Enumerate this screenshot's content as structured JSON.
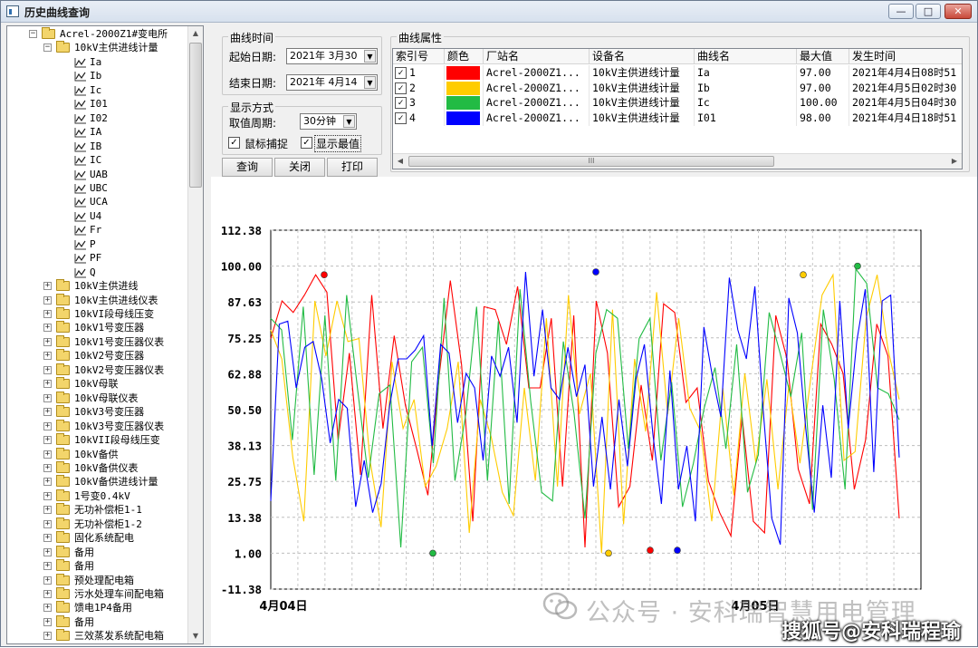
{
  "window": {
    "title": "历史曲线查询",
    "buttons": {
      "minimize": "—",
      "maximize": "□",
      "close": "✕"
    }
  },
  "tree": {
    "root": "Acrel-2000Z1#变电所",
    "node": "10kV主供进线计量",
    "children": [
      "Ia",
      "Ib",
      "Ic",
      "I01",
      "I02",
      "IA",
      "IB",
      "IC",
      "UAB",
      "UBC",
      "UCA",
      "U4",
      "Fr",
      "P",
      "PF",
      "Q"
    ],
    "siblings": [
      "10kV主供进线",
      "10kV主供进线仪表",
      "10kVI段母线压变",
      "10kV1号变压器",
      "10kV1号变压器仪表",
      "10kV2号变压器",
      "10kV2号变压器仪表",
      "10kV母联",
      "10kV母联仪表",
      "10kV3号变压器",
      "10kV3号变压器仪表",
      "10kVII段母线压变",
      "10kV备供",
      "10kV备供仪表",
      "10kV备供进线计量",
      "1号变0.4kV",
      "无功补偿柜1-1",
      "无功补偿柜1-2",
      "固化系统配电",
      "备用",
      "备用",
      "预处理配电箱",
      "污水处理车间配电箱",
      "馈电1P4备用",
      "备用",
      "三效蒸发系统配电箱"
    ]
  },
  "curve_time": {
    "group_title": "曲线时间",
    "start_label": "起始日期:",
    "start_value": "2021年 3月30",
    "end_label": "结束日期:",
    "end_value": "2021年 4月14"
  },
  "display_mode": {
    "group_title": "显示方式",
    "period_label": "取值周期:",
    "period_value": "30分钟",
    "mouse_capture_label": "鼠标捕捉",
    "mouse_capture_checked": true,
    "show_extreme_label": "显示最值",
    "show_extreme_checked": true
  },
  "actions": {
    "query": "查询",
    "close": "关闭",
    "print": "打印"
  },
  "curve_props": {
    "group_title": "曲线属性",
    "columns": [
      "索引号",
      "颜色",
      "厂站名",
      "设备名",
      "曲线名",
      "最大值",
      "发生时间"
    ],
    "rows": [
      {
        "index": "1",
        "color": "#ff0000",
        "station": "Acrel-2000Z1...",
        "device": "10kV主供进线计量",
        "curve": "Ia",
        "max": "97.00",
        "time": "2021年4月4日08时51"
      },
      {
        "index": "2",
        "color": "#ffcc00",
        "station": "Acrel-2000Z1...",
        "device": "10kV主供进线计量",
        "curve": "Ib",
        "max": "97.00",
        "time": "2021年4月5日02时30"
      },
      {
        "index": "3",
        "color": "#22bb44",
        "station": "Acrel-2000Z1...",
        "device": "10kV主供进线计量",
        "curve": "Ic",
        "max": "100.00",
        "time": "2021年4月5日04时30"
      },
      {
        "index": "4",
        "color": "#0000ff",
        "station": "Acrel-2000Z1...",
        "device": "10kV主供进线计量",
        "curve": "I01",
        "max": "98.00",
        "time": "2021年4月4日18时51"
      }
    ],
    "scroll_thumb_glyph": "III"
  },
  "chart_data": {
    "type": "line",
    "ylim": [
      -11.38,
      112.38
    ],
    "yticks": [
      "112.38",
      "100.00",
      "87.63",
      "75.25",
      "62.88",
      "50.50",
      "38.13",
      "25.75",
      "13.38",
      "1.00",
      "-11.38"
    ],
    "xticks": [
      "4月04日",
      "4月05日"
    ],
    "series": [
      {
        "name": "Ia",
        "color": "#ff0000",
        "values": [
          75,
          88,
          84,
          90,
          97,
          91,
          40,
          70,
          28,
          90,
          44,
          76,
          52,
          37,
          21,
          62,
          95,
          66,
          12,
          86,
          85,
          73,
          93,
          58,
          58,
          82,
          24,
          83,
          3,
          88,
          70,
          17,
          24,
          59,
          33,
          87,
          84,
          53,
          58,
          26,
          15,
          7,
          48,
          12,
          8,
          83,
          68,
          30,
          18,
          80,
          73,
          63,
          23,
          40,
          80,
          69,
          13
        ]
      },
      {
        "name": "Ib",
        "color": "#ffcc00",
        "values": [
          78,
          68,
          34,
          12,
          88,
          69,
          88,
          74,
          75,
          33,
          10,
          67,
          44,
          54,
          24,
          31,
          44,
          67,
          8,
          54,
          41,
          22,
          14,
          58,
          26,
          82,
          24,
          90,
          49,
          63,
          1,
          85,
          11,
          68,
          43,
          91,
          49,
          82,
          51,
          43,
          12,
          58,
          21,
          63,
          32,
          61,
          23,
          59,
          32,
          62,
          90,
          97,
          33,
          36,
          82,
          97,
          71,
          54
        ]
      },
      {
        "name": "Ic",
        "color": "#22bb44",
        "values": [
          82,
          78,
          40,
          86,
          28,
          83,
          26,
          90,
          58,
          27,
          56,
          59,
          3,
          67,
          72,
          32,
          89,
          26,
          49,
          86,
          26,
          81,
          18,
          92,
          53,
          22,
          19,
          74,
          49,
          13,
          70,
          85,
          82,
          37,
          75,
          82,
          33,
          60,
          17,
          32,
          51,
          65,
          37,
          73,
          22,
          35,
          84,
          70,
          55,
          77,
          16,
          85,
          61,
          23,
          99,
          94,
          58,
          56,
          47
        ]
      },
      {
        "name": "I01",
        "color": "#0000ff",
        "values": [
          19,
          80,
          81,
          58,
          72,
          74,
          61,
          39,
          54,
          51,
          17,
          33,
          15,
          25,
          52,
          68,
          68,
          71,
          76,
          38,
          73,
          70,
          46,
          63,
          58,
          33,
          69,
          62,
          72,
          46,
          98,
          62,
          85,
          58,
          54,
          72,
          55,
          66,
          24,
          48,
          23,
          54,
          31,
          61,
          73,
          42,
          18,
          64,
          23,
          38,
          12,
          79,
          62,
          48,
          96,
          78,
          68,
          93,
          50,
          13,
          4,
          89,
          77,
          44,
          15,
          52,
          27,
          88,
          44,
          74,
          92,
          29,
          88,
          90,
          34
        ]
      }
    ],
    "extremes": [
      {
        "series": "Ia",
        "kind": "max",
        "value": 97.0
      },
      {
        "series": "Ib",
        "kind": "max",
        "value": 97.0
      },
      {
        "series": "Ic",
        "kind": "max",
        "value": 100.0
      },
      {
        "series": "I01",
        "kind": "max",
        "value": 98.0
      },
      {
        "series": "Ia",
        "kind": "min",
        "value": 2.0
      },
      {
        "series": "Ib",
        "kind": "min",
        "value": 1.0
      },
      {
        "series": "Ic",
        "kind": "min",
        "value": 1.0
      },
      {
        "series": "I01",
        "kind": "min",
        "value": 2.0
      }
    ]
  },
  "watermarks": {
    "wechat": "公众号 · 安科瑞智慧用电管理",
    "sohu": "搜狐号@安科瑞程瑜"
  }
}
